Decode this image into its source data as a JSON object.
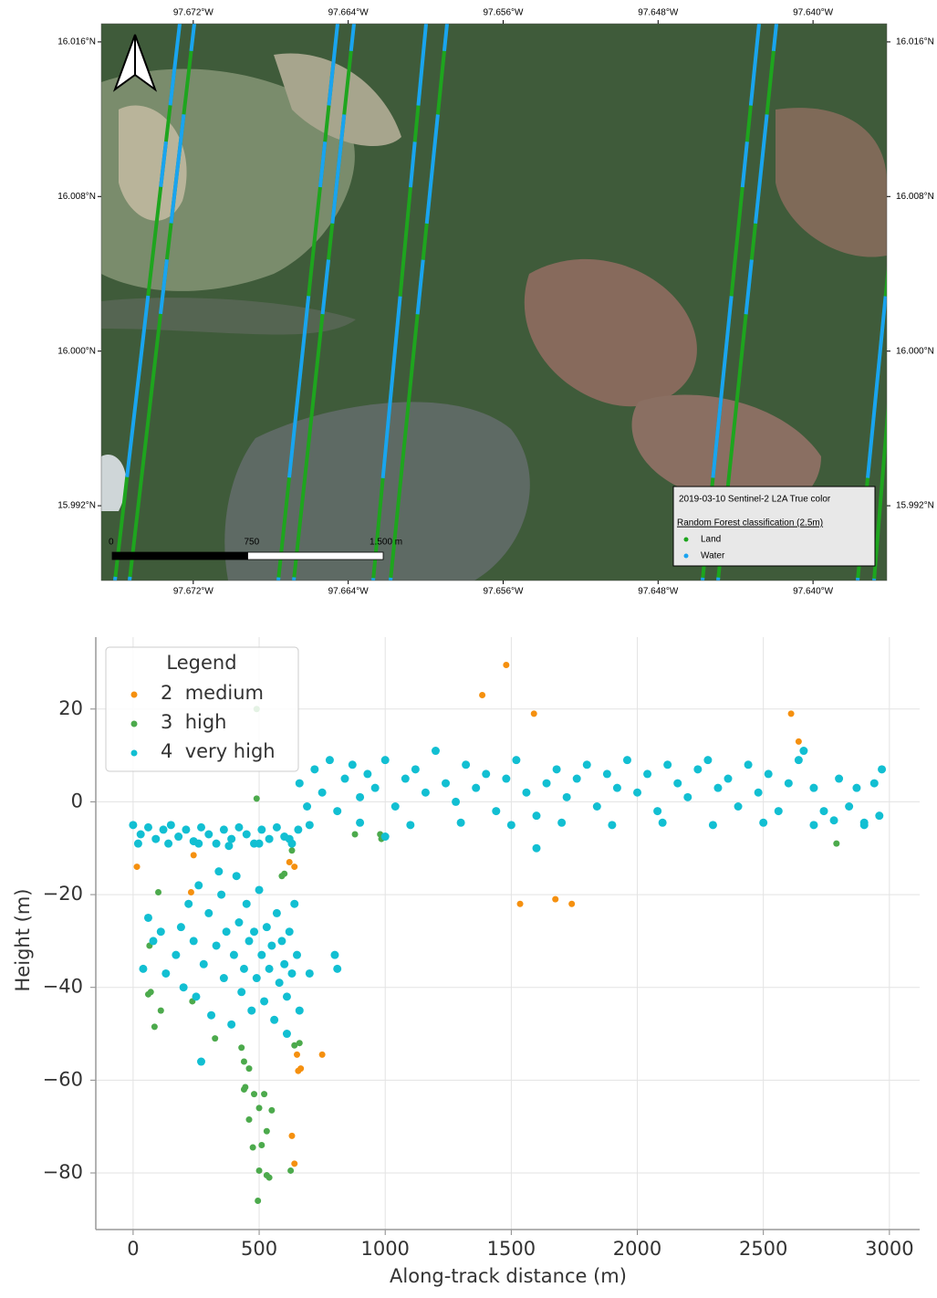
{
  "chart_data": [
    {
      "type": "map",
      "legend_title": "2019-03-10 Sentinel-2 L2A True color",
      "legend_subtitle": "Random Forest classification (2.5m)",
      "series": [
        {
          "name": "Land",
          "color": "#1ea51e"
        },
        {
          "name": "Water",
          "color": "#1aa3f0"
        }
      ],
      "xlim": [
        -97.67675,
        -97.63619
      ],
      "ylim": [
        15.98813,
        16.01694
      ],
      "xticks": [
        {
          "value": -97.672,
          "label": "97.672°W"
        },
        {
          "value": -97.664,
          "label": "97.664°W"
        },
        {
          "value": -97.656,
          "label": "97.656°W"
        },
        {
          "value": -97.648,
          "label": "97.648°W"
        },
        {
          "value": -97.64,
          "label": "97.640°W"
        }
      ],
      "yticks": [
        {
          "value": 16.016,
          "label": "16.016°N"
        },
        {
          "value": 16.008,
          "label": "16.008°N"
        },
        {
          "value": 16.0,
          "label": "16.000°N"
        },
        {
          "value": 15.992,
          "label": "15.992°N"
        }
      ],
      "scale_bar": [
        {
          "value": 0,
          "label": "0"
        },
        {
          "value": 750,
          "label": "750"
        },
        {
          "value": 1500,
          "label": "1.500 m"
        }
      ]
    },
    {
      "type": "scatter",
      "xlabel": "Along-track distance (m)",
      "ylabel": "Height (m)",
      "legend_title": "Legend",
      "grid": true,
      "xlim": [
        -148,
        3120
      ],
      "ylim": [
        -92.2,
        35.5
      ],
      "xticks": [
        0,
        500,
        1000,
        1500,
        2000,
        2500,
        3000
      ],
      "yticks": [
        {
          "value": -80,
          "label": "−80"
        },
        {
          "value": -60,
          "label": "−60"
        },
        {
          "value": -40,
          "label": "−40"
        },
        {
          "value": -20,
          "label": "−20"
        },
        0,
        20
      ],
      "series": [
        {
          "name": "2  medium",
          "color": "#f5900f",
          "x": [
            15,
            240,
            230,
            1385,
            1480,
            1590,
            1535,
            1675,
            1740,
            2610,
            2640,
            620,
            640,
            650,
            655,
            665,
            750,
            630,
            640
          ],
          "y": [
            -14,
            -11.5,
            -19.5,
            23,
            29.5,
            19,
            -22,
            -21,
            -22,
            19,
            13,
            -13,
            -14,
            -54.5,
            -58,
            -57.5,
            -54.5,
            -72,
            -78
          ]
        },
        {
          "name": "3  high",
          "color": "#4caa4c",
          "x": [
            490,
            490,
            100,
            65,
            60,
            70,
            85,
            110,
            235,
            325,
            430,
            440,
            460,
            440,
            445,
            480,
            520,
            550,
            500,
            460,
            530,
            475,
            510,
            500,
            530,
            625,
            495,
            540,
            640,
            660,
            630,
            880,
            980,
            985,
            2790,
            600,
            590
          ],
          "y": [
            20,
            0.7,
            -19.5,
            -31,
            -41.5,
            -41,
            -48.5,
            -45,
            -43,
            -51,
            -53,
            -56,
            -57.5,
            -62,
            -61.5,
            -63,
            -63,
            -66.5,
            -66,
            -68.5,
            -71,
            -74.5,
            -74,
            -79.5,
            -80.5,
            -79.5,
            -86,
            -81,
            -52.5,
            -52,
            -10.5,
            -7,
            -7,
            -8,
            -9,
            -15.5,
            -16
          ]
        },
        {
          "name": "4  very high",
          "color": "#12bfd2",
          "x": [
            0,
            30,
            60,
            90,
            120,
            150,
            180,
            210,
            240,
            270,
            300,
            330,
            360,
            390,
            420,
            450,
            480,
            510,
            540,
            570,
            600,
            630,
            655,
            20,
            140,
            260,
            380,
            500,
            620,
            40,
            60,
            80,
            110,
            130,
            170,
            190,
            200,
            220,
            240,
            250,
            260,
            280,
            300,
            310,
            330,
            350,
            360,
            370,
            390,
            400,
            410,
            420,
            430,
            440,
            450,
            460,
            470,
            480,
            490,
            500,
            510,
            520,
            530,
            540,
            550,
            560,
            570,
            580,
            590,
            600,
            610,
            620,
            630,
            640,
            650,
            660,
            610,
            340,
            700,
            800,
            810,
            270,
            660,
            690,
            720,
            750,
            780,
            810,
            840,
            870,
            900,
            930,
            960,
            1000,
            1040,
            1080,
            1120,
            1160,
            1200,
            1240,
            1280,
            1320,
            1360,
            1400,
            1440,
            1480,
            1520,
            1560,
            1600,
            1640,
            1680,
            1720,
            1760,
            1800,
            1840,
            1880,
            1920,
            1960,
            2000,
            2040,
            2080,
            2120,
            2160,
            2200,
            2240,
            2280,
            2320,
            2360,
            2400,
            2440,
            2480,
            2520,
            2560,
            2600,
            2640,
            2660,
            2700,
            2740,
            2780,
            2800,
            2840,
            2870,
            2900,
            2940,
            2970,
            2960,
            700,
            900,
            1100,
            1300,
            1500,
            1700,
            1900,
            2100,
            2300,
            2500,
            2700,
            2900,
            1600,
            1000
          ],
          "y": [
            -5,
            -7,
            -5.5,
            -8,
            -6,
            -5,
            -7.5,
            -6,
            -8.5,
            -5.5,
            -7,
            -9,
            -6,
            -8,
            -5.5,
            -7,
            -9,
            -6,
            -8,
            -5.5,
            -7.5,
            -9,
            -6,
            -9,
            -9,
            -9,
            -9.5,
            -9,
            -8,
            -36,
            -25,
            -30,
            -28,
            -37,
            -33,
            -27,
            -40,
            -22,
            -30,
            -42,
            -18,
            -35,
            -24,
            -46,
            -31,
            -20,
            -38,
            -28,
            -48,
            -33,
            -16,
            -26,
            -41,
            -36,
            -22,
            -30,
            -45,
            -28,
            -38,
            -19,
            -33,
            -43,
            -27,
            -36,
            -31,
            -47,
            -24,
            -39,
            -30,
            -35,
            -42,
            -28,
            -37,
            -22,
            -33,
            -45,
            -50,
            -15,
            -37,
            -33,
            -36,
            -56,
            4,
            -1,
            7,
            2,
            9,
            -2,
            5,
            8,
            1,
            6,
            3,
            9,
            -1,
            5,
            7,
            2,
            11,
            4,
            0,
            8,
            3,
            6,
            -2,
            5,
            9,
            2,
            -3,
            4,
            7,
            1,
            5,
            8,
            -1,
            6,
            3,
            9,
            2,
            6,
            -2,
            8,
            4,
            1,
            7,
            9,
            3,
            5,
            -1,
            8,
            2,
            6,
            -2,
            4,
            9,
            11,
            3,
            -2,
            -4,
            5,
            -1,
            3,
            -5,
            4,
            7,
            -3,
            -5,
            -4.5,
            -5,
            -4.5,
            -5,
            -4.5,
            -5,
            -4.5,
            -5,
            -4.5,
            -5,
            -4.5,
            -10,
            -7.5
          ]
        }
      ]
    }
  ]
}
